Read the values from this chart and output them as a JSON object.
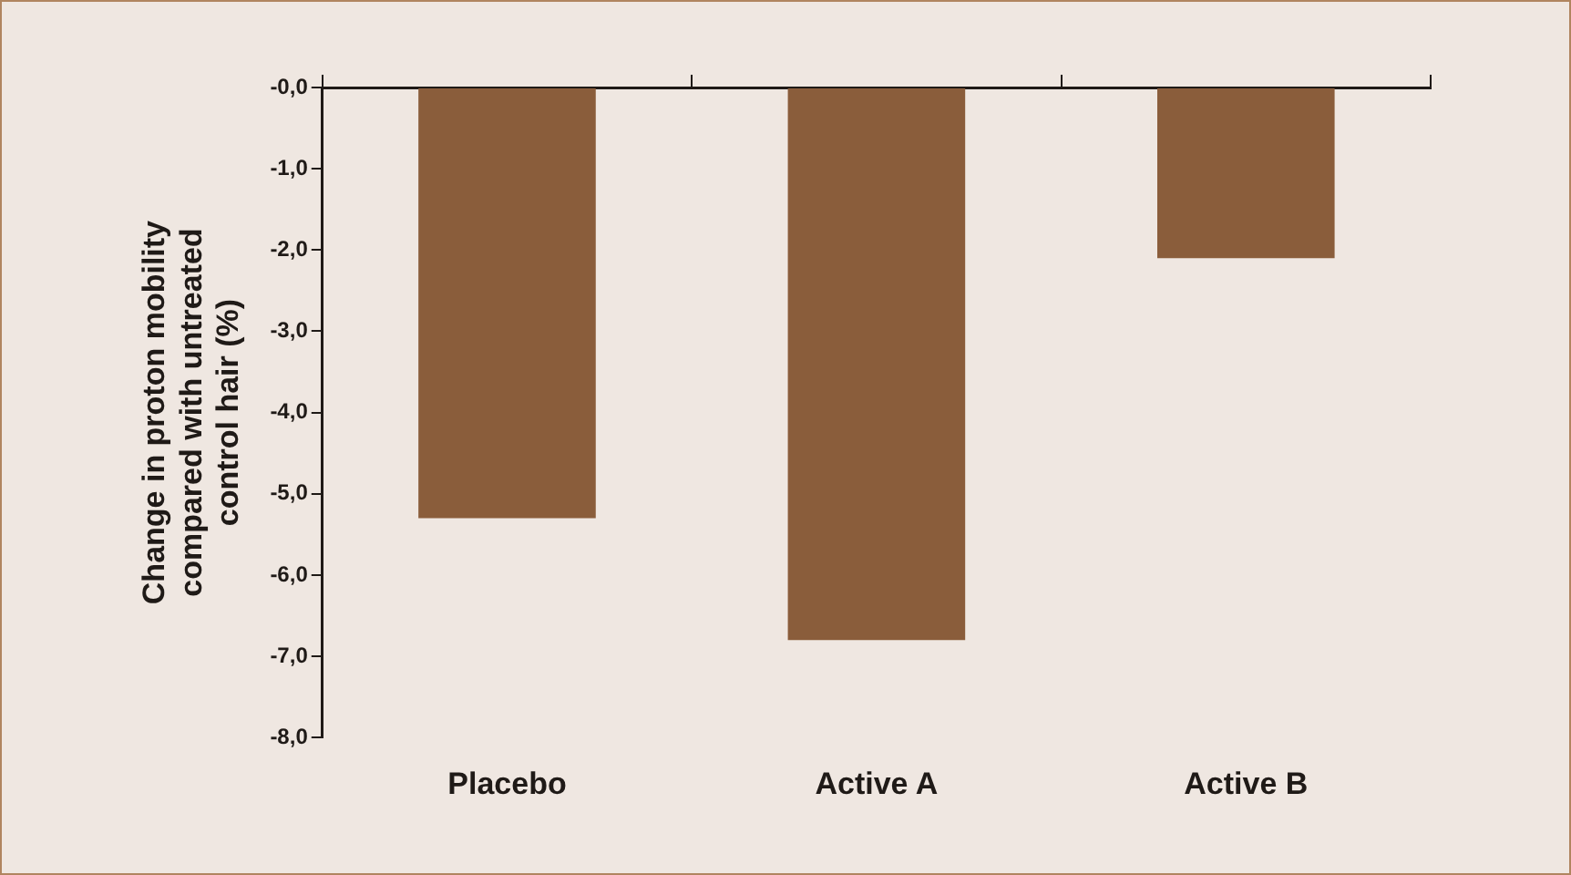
{
  "chart_data": {
    "type": "bar",
    "ylabel": "Change in proton mobility compared with untreated control hair (%)",
    "categories": [
      "Placebo",
      "Active A",
      "Active B"
    ],
    "values": [
      -5.3,
      -6.8,
      -2.1
    ],
    "color": "#8a5d3b",
    "ylim": [
      -8,
      0
    ],
    "yticks": [
      {
        "value": 0,
        "label": "-0,0"
      },
      {
        "value": -1,
        "label": "-1,0"
      },
      {
        "value": -2,
        "label": "-2,0"
      },
      {
        "value": -3,
        "label": "-3,0"
      },
      {
        "value": -4,
        "label": "-4,0"
      },
      {
        "value": -5,
        "label": "-5,0"
      },
      {
        "value": -6,
        "label": "-6,0"
      },
      {
        "value": -7,
        "label": "-7,0"
      },
      {
        "value": -8,
        "label": "-8,0"
      }
    ],
    "grid": false,
    "legend": false
  }
}
